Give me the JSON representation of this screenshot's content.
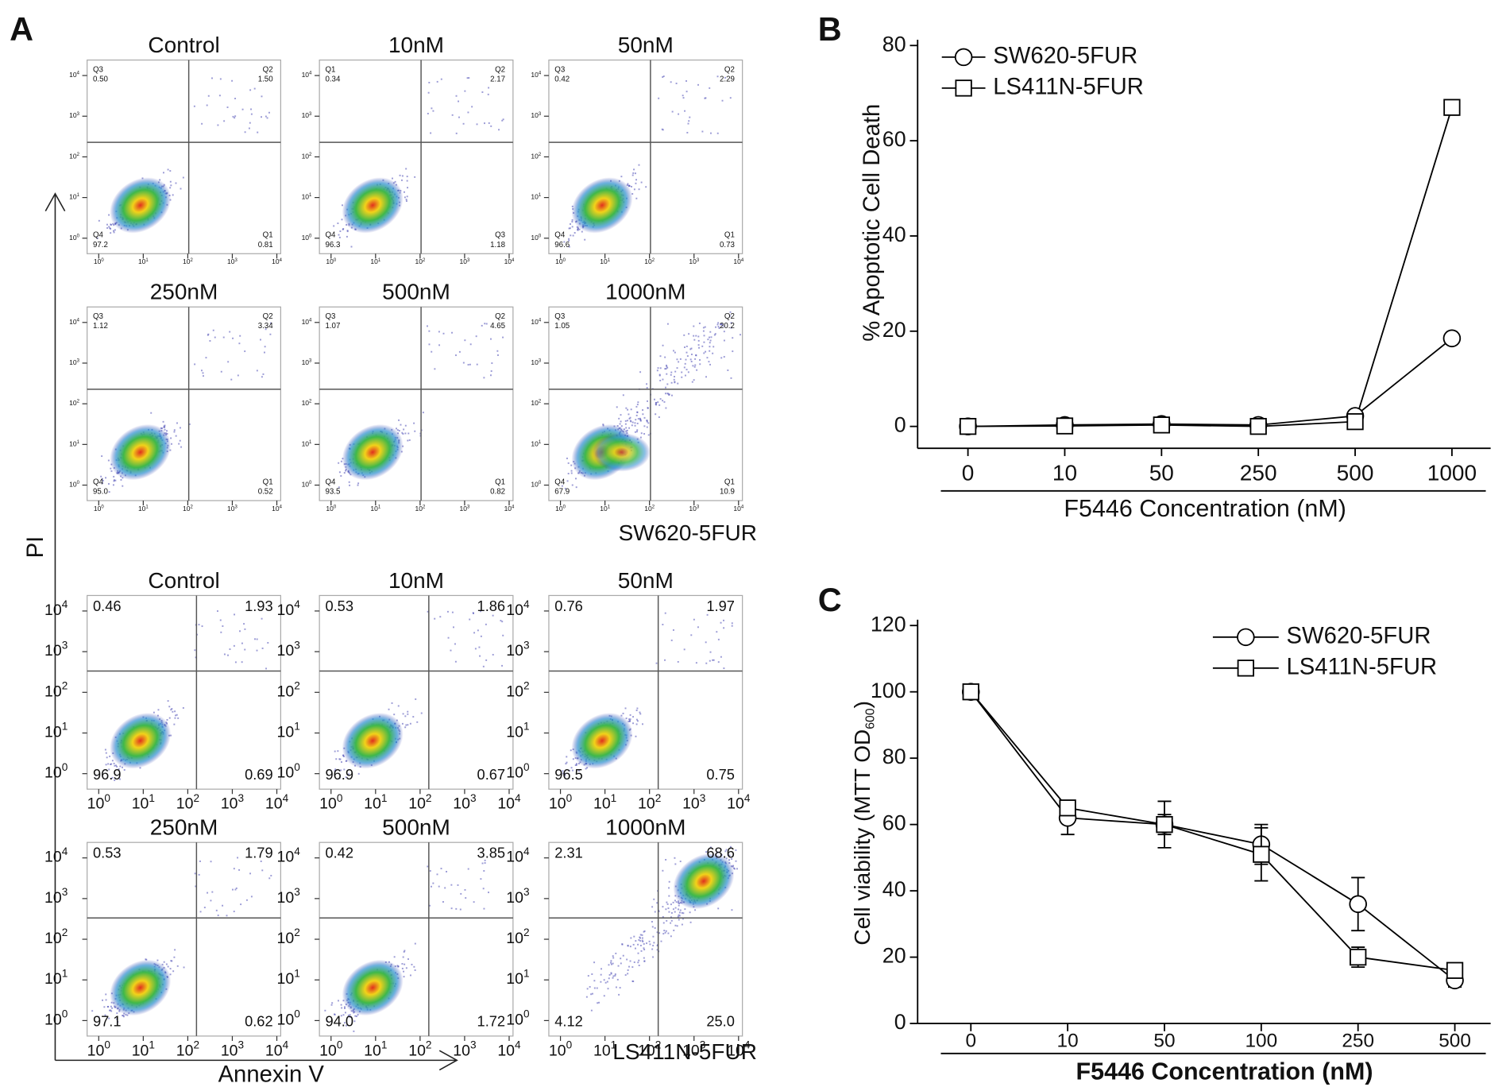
{
  "flow_panel": {
    "panel_label": "A",
    "y_axis_label": "PI",
    "x_axis_label": "Annexin V",
    "axis_ticks": [
      {
        "base": "10",
        "exp": "0"
      },
      {
        "base": "10",
        "exp": "1"
      },
      {
        "base": "10",
        "exp": "2"
      },
      {
        "base": "10",
        "exp": "3"
      },
      {
        "base": "10",
        "exp": "4"
      }
    ],
    "groups": [
      {
        "name": "SW620-5FUR",
        "plots": [
          {
            "title": "Control",
            "quadrants": [
              {
                "name": "Q3",
                "value": "0.50"
              },
              {
                "name": "Q2",
                "value": "1.50"
              },
              {
                "name": "Q4",
                "value": "97.2"
              },
              {
                "name": "Q1",
                "value": "0.81"
              }
            ]
          },
          {
            "title": "10nM",
            "quadrants": [
              {
                "name": "Q1",
                "value": "0.34"
              },
              {
                "name": "Q2",
                "value": "2.17"
              },
              {
                "name": "Q4",
                "value": "96.3"
              },
              {
                "name": "Q3",
                "value": "1.18"
              }
            ]
          },
          {
            "title": "50nM",
            "quadrants": [
              {
                "name": "Q3",
                "value": "0.42"
              },
              {
                "name": "Q2",
                "value": "2.29"
              },
              {
                "name": "Q4",
                "value": "96.6"
              },
              {
                "name": "Q1",
                "value": "0.73"
              }
            ]
          },
          {
            "title": "250nM",
            "quadrants": [
              {
                "name": "Q3",
                "value": "1.12"
              },
              {
                "name": "Q2",
                "value": "3.34"
              },
              {
                "name": "Q4",
                "value": "95.0"
              },
              {
                "name": "Q1",
                "value": "0.52"
              }
            ]
          },
          {
            "title": "500nM",
            "quadrants": [
              {
                "name": "Q3",
                "value": "1.07"
              },
              {
                "name": "Q2",
                "value": "4.65"
              },
              {
                "name": "Q4",
                "value": "93.5"
              },
              {
                "name": "Q1",
                "value": "0.82"
              }
            ]
          },
          {
            "title": "1000nM",
            "quadrants": [
              {
                "name": "Q3",
                "value": "1.05"
              },
              {
                "name": "Q2",
                "value": "20.2"
              },
              {
                "name": "Q4",
                "value": "67.9"
              },
              {
                "name": "Q1",
                "value": "10.9"
              }
            ]
          }
        ]
      },
      {
        "name": "LS411N-5FUR",
        "plots": [
          {
            "title": "Control",
            "quadrants": [
              {
                "value": "0.46"
              },
              {
                "value": "1.93"
              },
              {
                "value": "96.9"
              },
              {
                "value": "0.69"
              }
            ]
          },
          {
            "title": "10nM",
            "quadrants": [
              {
                "value": "0.53"
              },
              {
                "value": "1.86"
              },
              {
                "value": "96.9"
              },
              {
                "value": "0.67"
              }
            ]
          },
          {
            "title": "50nM",
            "quadrants": [
              {
                "value": "0.76"
              },
              {
                "value": "1.97"
              },
              {
                "value": "96.5"
              },
              {
                "value": "0.75"
              }
            ]
          },
          {
            "title": "250nM",
            "quadrants": [
              {
                "value": "0.53"
              },
              {
                "value": "1.79"
              },
              {
                "value": "97.1"
              },
              {
                "value": "0.62"
              }
            ]
          },
          {
            "title": "500nM",
            "quadrants": [
              {
                "value": "0.42"
              },
              {
                "value": "3.85"
              },
              {
                "value": "94.0"
              },
              {
                "value": "1.72"
              }
            ]
          },
          {
            "title": "1000nM",
            "quadrants": [
              {
                "value": "2.31"
              },
              {
                "value": "68.6"
              },
              {
                "value": "4.12"
              },
              {
                "value": "25.0"
              }
            ]
          }
        ]
      }
    ]
  },
  "chart_data": [
    {
      "type": "line",
      "panel_label": "B",
      "y_label": "% Apoptotic Cell Death",
      "x_label": "F5446 Concentration (nM)",
      "categories": [
        "0",
        "10",
        "50",
        "250",
        "500",
        "1000"
      ],
      "ylim": [
        -4.6,
        80
      ],
      "yticks": [
        0,
        20,
        40,
        60,
        80
      ],
      "legend": "upper left",
      "series": [
        {
          "name": "SW620-5FUR",
          "marker": "circle",
          "color": "#000000",
          "values": [
            0,
            0.3,
            0.5,
            0.3,
            2.2,
            18.5
          ]
        },
        {
          "name": "LS411N-5FUR",
          "marker": "square",
          "color": "#000000",
          "values": [
            0,
            0.1,
            0.3,
            0,
            1,
            67
          ]
        }
      ]
    },
    {
      "type": "line",
      "panel_label": "C",
      "y_label": {
        "text": "Cell viability  (MTT OD",
        "subscript": "600",
        "suffix": ")"
      },
      "x_label": "F5446 Concentration (nM)",
      "categories": [
        "0",
        "10",
        "50",
        "100",
        "250",
        "500"
      ],
      "ylim": [
        0,
        120
      ],
      "yticks": [
        0,
        20,
        40,
        60,
        80,
        100,
        120
      ],
      "legend": "upper right",
      "series": [
        {
          "name": "SW620-5FUR",
          "marker": "circle",
          "color": "#000000",
          "values": [
            100,
            62,
            60,
            54,
            36,
            13
          ],
          "errors": [
            1,
            5,
            7,
            6,
            8,
            2
          ]
        },
        {
          "name": "LS411N-5FUR",
          "marker": "square",
          "color": "#000000",
          "values": [
            100,
            65,
            60,
            51,
            20,
            16
          ],
          "errors": [
            1,
            2,
            3,
            8,
            3,
            2
          ]
        }
      ]
    }
  ]
}
